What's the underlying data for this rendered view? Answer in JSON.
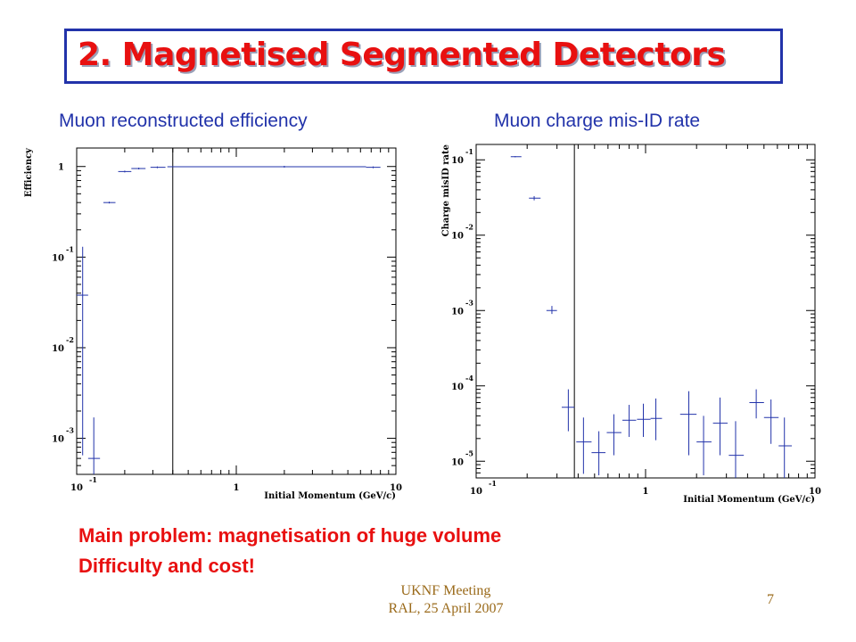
{
  "slide": {
    "title": "2. Magnetised Segmented Detectors",
    "notes": [
      "Main problem: magnetisation of huge volume",
      "Difficulty and cost!"
    ],
    "footer_lines": [
      "UKNF Meeting",
      "RAL, 25 April 2007"
    ],
    "page_number": "7"
  },
  "colors": {
    "title": "#e81010",
    "accent": "#2233aa",
    "data": "#2233aa",
    "note": "#e81010",
    "footer": "#9a6a1a"
  },
  "captions": [
    "Muon reconstructed efficiency",
    "Muon charge mis-ID rate"
  ],
  "chart_data": [
    {
      "type": "scatter",
      "title": "Muon reconstructed efficiency",
      "xlabel": "Initial Momentum (GeV/c)",
      "ylabel": "Efficiency",
      "x_scale": "log",
      "y_scale": "log",
      "xlim": [
        0.1,
        10
      ],
      "ylim": [
        0.0004,
        1.6
      ],
      "x_ticks": [
        {
          "base": "10",
          "exp": "-1"
        },
        {
          "base": "1",
          "exp": ""
        },
        {
          "base": "10",
          "exp": ""
        }
      ],
      "y_ticks": [
        {
          "base": "10",
          "exp": "-3"
        },
        {
          "base": "10",
          "exp": "-2"
        },
        {
          "base": "10",
          "exp": "-1"
        },
        {
          "base": "1",
          "exp": ""
        }
      ],
      "y_tick_values": [
        0.001,
        0.01,
        0.1,
        1
      ],
      "vline_x": 0.4,
      "points": [
        {
          "x": 0.109,
          "xlo": 0.1,
          "xhi": 0.118,
          "y": 0.038,
          "ylo": 0.00065,
          "yhi": 0.13
        },
        {
          "x": 0.128,
          "xlo": 0.118,
          "xhi": 0.14,
          "y": 0.0006,
          "ylo": 0.0004,
          "yhi": 0.0017
        },
        {
          "x": 0.16,
          "xlo": 0.147,
          "xhi": 0.175,
          "y": 0.4,
          "ylo": 0.4,
          "yhi": 0.4
        },
        {
          "x": 0.2,
          "xlo": 0.182,
          "xhi": 0.22,
          "y": 0.88,
          "ylo": 0.88,
          "yhi": 0.88
        },
        {
          "x": 0.245,
          "xlo": 0.22,
          "xhi": 0.27,
          "y": 0.95,
          "ylo": 0.95,
          "yhi": 0.95
        },
        {
          "x": 0.32,
          "xlo": 0.29,
          "xhi": 0.36,
          "y": 0.98,
          "ylo": 0.98,
          "yhi": 0.98
        },
        {
          "x": 2.0,
          "xlo": 0.37,
          "xhi": 6.5,
          "y": 0.995,
          "ylo": 0.995,
          "yhi": 0.995
        },
        {
          "x": 7.2,
          "xlo": 6.5,
          "xhi": 8.0,
          "y": 0.98,
          "ylo": 0.98,
          "yhi": 0.98
        }
      ]
    },
    {
      "type": "scatter",
      "title": "Muon charge mis-ID rate",
      "xlabel": "Initial Momentum (GeV/c)",
      "ylabel": "Charge misID rate",
      "x_scale": "log",
      "y_scale": "log",
      "xlim": [
        0.1,
        10
      ],
      "ylim": [
        6e-06,
        0.16
      ],
      "x_ticks": [
        {
          "base": "10",
          "exp": "-1"
        },
        {
          "base": "1",
          "exp": ""
        },
        {
          "base": "10",
          "exp": ""
        }
      ],
      "y_ticks": [
        {
          "base": "10",
          "exp": "-5"
        },
        {
          "base": "10",
          "exp": "-4"
        },
        {
          "base": "10",
          "exp": "-3"
        },
        {
          "base": "10",
          "exp": "-2"
        },
        {
          "base": "10",
          "exp": "-1"
        }
      ],
      "y_tick_values": [
        1e-05,
        0.0001,
        0.001,
        0.01,
        0.1
      ],
      "vline_x": 0.38,
      "points": [
        {
          "x": 0.17,
          "xlo": 0.16,
          "xhi": 0.185,
          "y": 0.11,
          "ylo": 0.108,
          "yhi": 0.112
        },
        {
          "x": 0.22,
          "xlo": 0.205,
          "xhi": 0.24,
          "y": 0.031,
          "ylo": 0.029,
          "yhi": 0.033
        },
        {
          "x": 0.28,
          "xlo": 0.26,
          "xhi": 0.3,
          "y": 0.001,
          "ylo": 0.0009,
          "yhi": 0.00115
        },
        {
          "x": 0.35,
          "xlo": 0.32,
          "xhi": 0.38,
          "y": 5.2e-05,
          "ylo": 2.5e-05,
          "yhi": 9e-05
        },
        {
          "x": 0.43,
          "xlo": 0.39,
          "xhi": 0.48,
          "y": 1.8e-05,
          "ylo": 6.8e-06,
          "yhi": 3.8e-05
        },
        {
          "x": 0.53,
          "xlo": 0.48,
          "xhi": 0.58,
          "y": 1.3e-05,
          "ylo": 6.5e-06,
          "yhi": 2.5e-05
        },
        {
          "x": 0.65,
          "xlo": 0.59,
          "xhi": 0.72,
          "y": 2.4e-05,
          "ylo": 1.2e-05,
          "yhi": 4.2e-05
        },
        {
          "x": 0.8,
          "xlo": 0.73,
          "xhi": 0.88,
          "y": 3.5e-05,
          "ylo": 2.1e-05,
          "yhi": 5.6e-05
        },
        {
          "x": 0.97,
          "xlo": 0.89,
          "xhi": 1.07,
          "y": 3.6e-05,
          "ylo": 2.1e-05,
          "yhi": 5.8e-05
        },
        {
          "x": 1.15,
          "xlo": 1.07,
          "xhi": 1.25,
          "y": 3.7e-05,
          "ylo": 1.9e-05,
          "yhi": 6.8e-05
        },
        {
          "x": 1.8,
          "xlo": 1.6,
          "xhi": 2.0,
          "y": 4.2e-05,
          "ylo": 1.2e-05,
          "yhi": 8.5e-05
        },
        {
          "x": 2.2,
          "xlo": 2.0,
          "xhi": 2.45,
          "y": 1.8e-05,
          "ylo": 6.5e-06,
          "yhi": 4e-05
        },
        {
          "x": 2.75,
          "xlo": 2.5,
          "xhi": 3.05,
          "y": 3.2e-05,
          "ylo": 1.2e-05,
          "yhi": 7e-05
        },
        {
          "x": 3.4,
          "xlo": 3.1,
          "xhi": 3.8,
          "y": 1.2e-05,
          "ylo": 6e-06,
          "yhi": 3.4e-05
        },
        {
          "x": 4.5,
          "xlo": 4.1,
          "xhi": 5.0,
          "y": 6e-05,
          "ylo": 3.7e-05,
          "yhi": 9e-05
        },
        {
          "x": 5.5,
          "xlo": 5.0,
          "xhi": 6.1,
          "y": 3.8e-05,
          "ylo": 1.7e-05,
          "yhi": 6.6e-05
        },
        {
          "x": 6.6,
          "xlo": 6.1,
          "xhi": 7.3,
          "y": 1.6e-05,
          "ylo": 6e-06,
          "yhi": 3.8e-05
        }
      ]
    }
  ]
}
